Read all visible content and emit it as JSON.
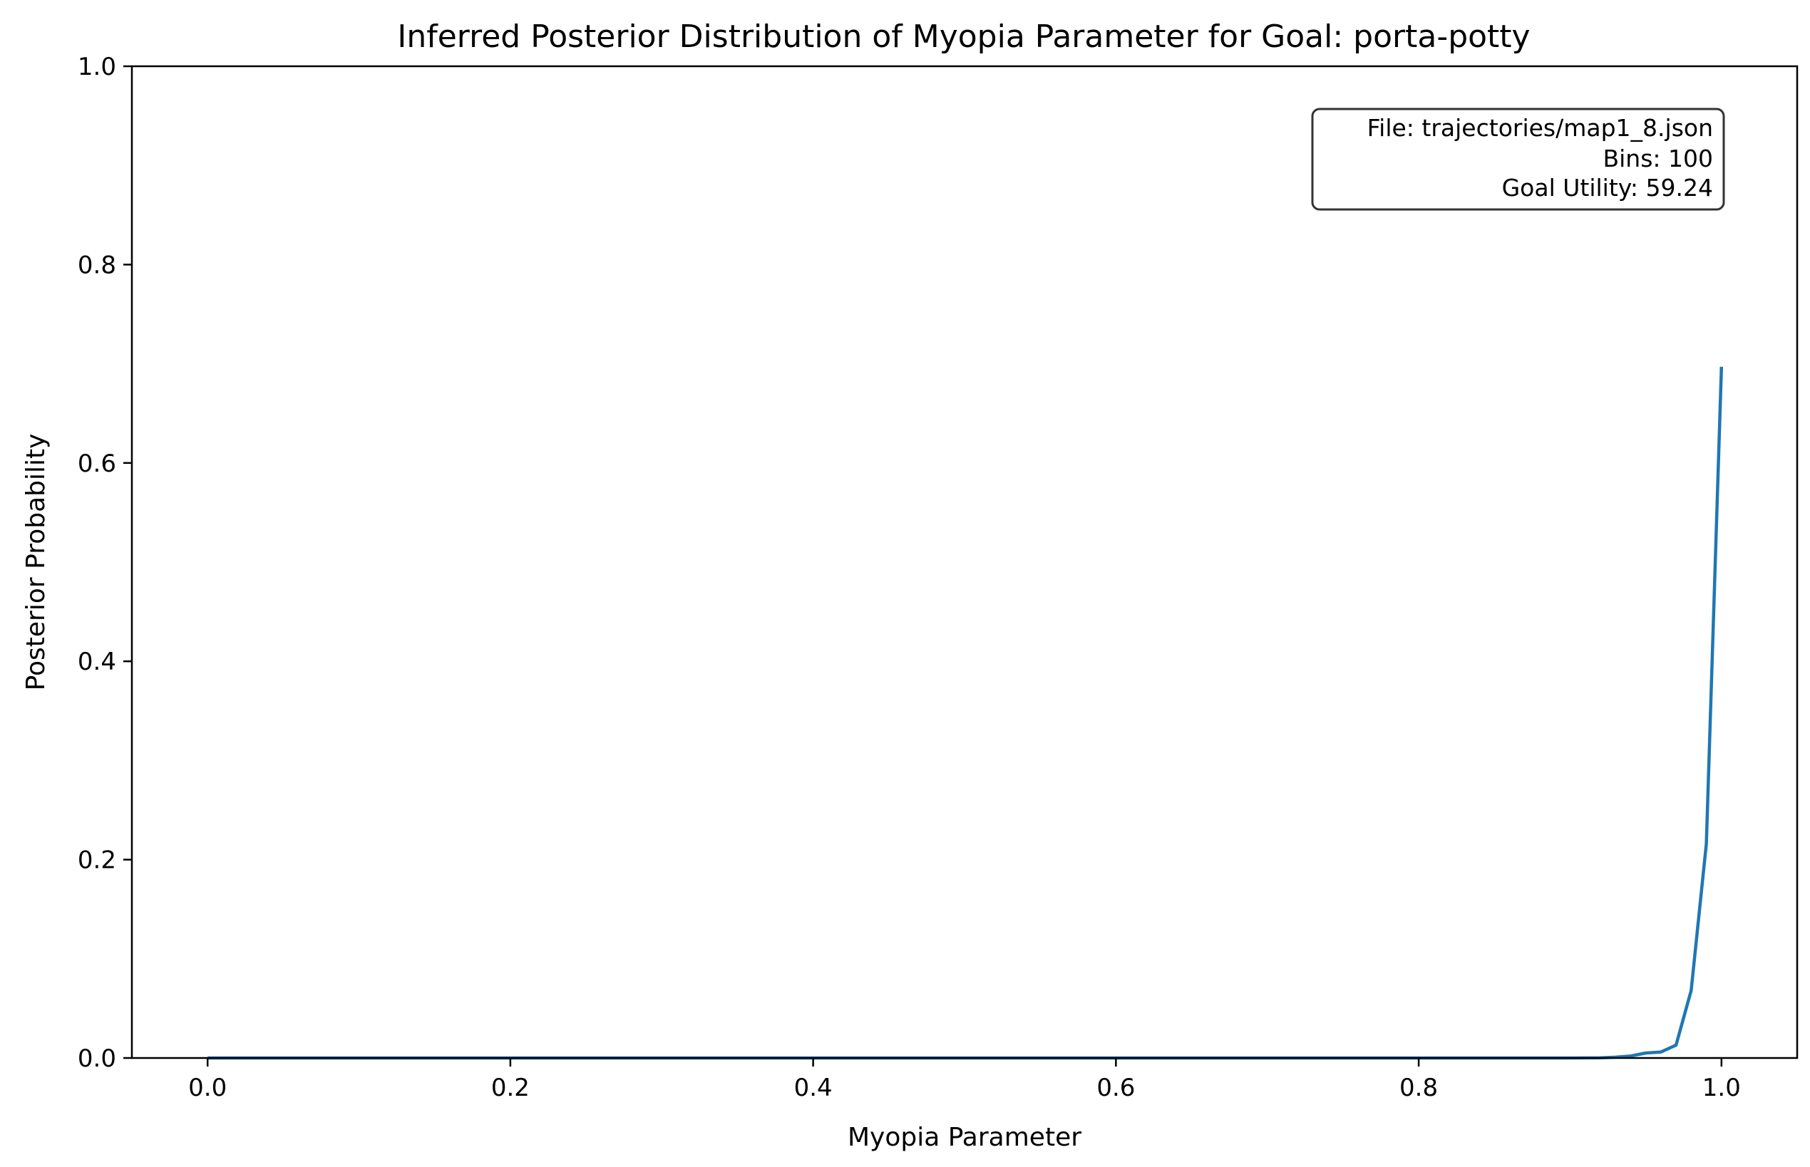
{
  "chart_data": {
    "type": "line",
    "title": "Inferred Posterior Distribution of Myopia Parameter for Goal: porta-potty",
    "xlabel": "Myopia Parameter",
    "ylabel": "Posterior Probability",
    "xlim": [
      -0.05,
      1.05
    ],
    "ylim": [
      0,
      1
    ],
    "xticks": [
      "0.0",
      "0.2",
      "0.4",
      "0.6",
      "0.8",
      "1.0"
    ],
    "xtick_values": [
      0,
      0.2,
      0.4,
      0.6,
      0.8,
      1.0
    ],
    "yticks": [
      "0.0",
      "0.2",
      "0.4",
      "0.6",
      "0.8",
      "1.0"
    ],
    "ytick_values": [
      0,
      0.2,
      0.4,
      0.6,
      0.8,
      1.0
    ],
    "grid": false,
    "line_color": "#1f77b4",
    "series": [
      {
        "x": [
          0.0,
          0.1,
          0.2,
          0.3,
          0.4,
          0.5,
          0.6,
          0.7,
          0.8,
          0.9,
          0.92,
          0.93,
          0.94,
          0.95,
          0.96,
          0.97,
          0.98,
          0.99,
          1.0
        ],
        "y": [
          0,
          0,
          0,
          0,
          0,
          0,
          0,
          0,
          0,
          0,
          0.0002,
          0.0008,
          0.002,
          0.005,
          0.006,
          0.013,
          0.068,
          0.216,
          0.697
        ]
      }
    ],
    "annotation": {
      "lines": [
        "File: trajectories/map1_8.json",
        "Bins: 100",
        "Goal Utility: 59.24"
      ],
      "placement": "top-right"
    }
  }
}
